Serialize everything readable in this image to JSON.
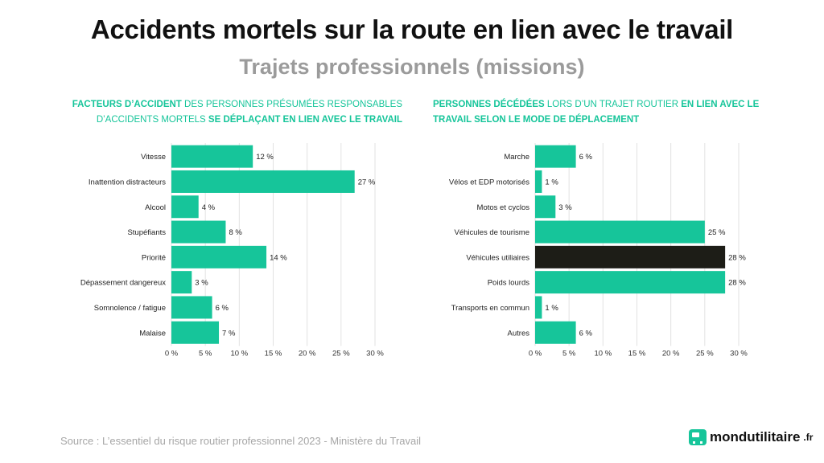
{
  "page": {
    "title": "Accidents mortels sur la route en lien avec le travail",
    "subtitle": "Trajets professionnels (missions)",
    "source": "Source : L’essentiel du risque routier professionnel 2023 - Ministère du Travail",
    "logo": {
      "name": "mondutilitaire",
      "tld": ".fr"
    }
  },
  "colors": {
    "accent": "#16c59a",
    "highlight": "#1d1d17",
    "grid": "#e2e2e2"
  },
  "chart_data": [
    {
      "type": "bar",
      "orientation": "horizontal",
      "title_parts": [
        {
          "text": "Facteurs d’accident",
          "style": "highlight"
        },
        {
          "text": " des personnes présumées responsables d’accidents mortels ",
          "style": "normal"
        },
        {
          "text": "se déplaçant en lien avec le travail",
          "style": "highlight"
        }
      ],
      "categories": [
        "Vitesse",
        "Inattention distracteurs",
        "Alcool",
        "Stupéfiants",
        "Priorité",
        "Dépassement dangereux",
        "Somnolence / fatigue",
        "Malaise"
      ],
      "values": [
        12,
        27,
        4,
        8,
        14,
        3,
        6,
        7
      ],
      "value_labels": [
        "12 %",
        "27 %",
        "4 %",
        "8 %",
        "14 %",
        "3 %",
        "6 %",
        "7 %"
      ],
      "xlim": [
        0,
        30
      ],
      "xticks": [
        "0 %",
        "5 %",
        "10 %",
        "15 %",
        "20 %",
        "25 %",
        "30 %"
      ],
      "grid": true
    },
    {
      "type": "bar",
      "orientation": "horizontal",
      "title_parts": [
        {
          "text": "Personnes décédées",
          "style": "highlight"
        },
        {
          "text": " lors d’un trajet routier ",
          "style": "normal"
        },
        {
          "text": "en lien avec le travail selon le mode de déplacement",
          "style": "highlight"
        }
      ],
      "categories": [
        "Marche",
        "Vélos et EDP motorisés",
        "Motos et cyclos",
        "Véhicules de tourisme",
        "Véhicules utiliaires",
        "Poids lourds",
        "Transports en commun",
        "Autres"
      ],
      "values": [
        6,
        1,
        3,
        25,
        28,
        28,
        1,
        6
      ],
      "value_labels": [
        "6 %",
        "1 %",
        "3 %",
        "25 %",
        "28 %",
        "28 %",
        "1 %",
        "6 %"
      ],
      "highlighted_category": "Véhicules utiliaires",
      "xlim": [
        0,
        30
      ],
      "xticks": [
        "0 %",
        "5 %",
        "10 %",
        "15 %",
        "20 %",
        "25 %",
        "30 %"
      ],
      "grid": true
    }
  ]
}
